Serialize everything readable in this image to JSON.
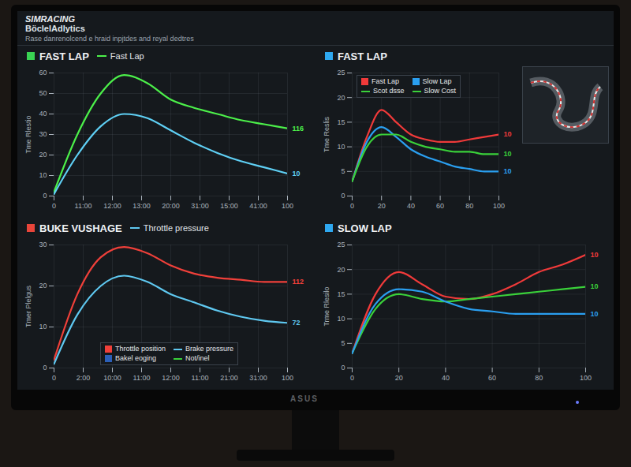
{
  "page": {
    "brand": "SIMRACING",
    "title": "BöclelAdlytics",
    "subtitle": "Rase danrenolcend e hraid inpjtdes and reyal dedtres",
    "bezel_label": "ASUS"
  },
  "chart_data": [
    {
      "type": "line",
      "title": "FAST LAP",
      "color": "#39d353",
      "x": [
        0,
        10,
        20,
        30,
        40,
        50,
        60,
        70,
        80,
        90,
        100
      ],
      "xlim": [
        0,
        100
      ],
      "xticks": [
        0,
        {
          "value": 12.5,
          "label": "11:00"
        },
        {
          "value": 25,
          "label": "12:00"
        },
        {
          "value": 37.5,
          "label": "13:00"
        },
        {
          "value": 50,
          "label": "20:00"
        },
        {
          "value": 62.5,
          "label": "31:00"
        },
        {
          "value": 75,
          "label": "15:00"
        },
        {
          "value": 87.5,
          "label": "41:00"
        },
        100
      ],
      "ylim": [
        0,
        60
      ],
      "yticks": [
        0,
        10,
        20,
        30,
        40,
        50,
        60
      ],
      "y_label": "Tme Rlestio",
      "grid": true,
      "legend": "top",
      "series": [
        {
          "name": "Fast Lap",
          "color": "#4cf04a",
          "values": [
            2,
            30,
            50,
            59,
            55,
            47,
            43,
            40,
            37,
            35,
            33
          ]
        },
        {
          "name": null,
          "color": "#5fd0f5",
          "values": [
            1,
            20,
            34,
            40,
            38,
            32,
            26,
            21,
            17,
            14,
            11
          ]
        }
      ],
      "end_labels": [
        "116",
        "10"
      ]
    },
    {
      "type": "line",
      "title": "FAST LAP",
      "color": "#2ea8f0",
      "x": [
        0,
        10,
        20,
        30,
        40,
        50,
        60,
        70,
        80,
        90,
        100
      ],
      "xlim": [
        0,
        100
      ],
      "xticks": [
        0,
        20,
        40,
        60,
        80,
        100
      ],
      "ylim": [
        0,
        25
      ],
      "yticks": [
        0,
        5,
        10,
        15,
        20,
        25
      ],
      "y_label": "Tme Reslis",
      "grid": true,
      "legend": "upper left",
      "series": [
        {
          "name": "Fast Lap",
          "color": "#f03a3a",
          "marker": "square",
          "values": [
            3,
            12,
            17.5,
            15,
            12.5,
            11.5,
            11,
            11,
            11.5,
            12,
            12.5
          ]
        },
        {
          "name": "Slow Lap",
          "color": "#2a9ff0",
          "marker": "square",
          "values": [
            3,
            11,
            14,
            12,
            9.5,
            8,
            7,
            6,
            5.5,
            5,
            5
          ]
        },
        {
          "name": "Scot dsse",
          "color": "#3ad13a",
          "values": [
            3,
            10,
            12.5,
            12.5,
            11,
            10,
            9.5,
            9,
            9,
            8.5,
            8.5
          ]
        },
        {
          "name": "Slow Cost",
          "color": "#3ad13a",
          "values": [
            null,
            null,
            null,
            null,
            null,
            null,
            null,
            null,
            null,
            null,
            null
          ]
        }
      ],
      "end_labels": [
        "10",
        "10",
        "10",
        null
      ]
    },
    {
      "type": "line",
      "title": "BUKE VUSHAGE",
      "subtitle": "Throttle pressure",
      "color": "#e8453a",
      "x": [
        0,
        10,
        20,
        30,
        40,
        50,
        60,
        70,
        80,
        90,
        100
      ],
      "xlim": [
        0,
        100
      ],
      "xticks": [
        0,
        {
          "value": 12.5,
          "label": "2:00"
        },
        {
          "value": 25,
          "label": "10:00"
        },
        {
          "value": 37.5,
          "label": "11:00"
        },
        {
          "value": 50,
          "label": "12:00"
        },
        {
          "value": 62.5,
          "label": "11:00"
        },
        {
          "value": 75,
          "label": "21:00"
        },
        {
          "value": 87.5,
          "label": "31:00"
        },
        100
      ],
      "ylim": [
        0,
        30
      ],
      "yticks": [
        0,
        10,
        20,
        30
      ],
      "y_label": "Tmer Plelgus",
      "grid": true,
      "legend": "lower left",
      "series": [
        {
          "name": "Throttle position",
          "color": "#f0403a",
          "marker": "square",
          "values": [
            2,
            18,
            27,
            29.5,
            28,
            25,
            23,
            22,
            21.5,
            21,
            21
          ]
        },
        {
          "name": "Brake pressure",
          "color": "#5fc8f0",
          "values": [
            1,
            13,
            20,
            22.5,
            21,
            18,
            16,
            14,
            12.5,
            11.5,
            11
          ]
        },
        {
          "name": "Bakel eoging",
          "color": "#2b5fb8",
          "marker": "square",
          "values": [
            null,
            null,
            null,
            null,
            null,
            null,
            null,
            null,
            null,
            null,
            null
          ]
        },
        {
          "name": "Not/inel",
          "color": "#3ad13a",
          "values": [
            null,
            null,
            null,
            null,
            null,
            null,
            null,
            null,
            null,
            null,
            null
          ]
        }
      ],
      "end_labels": [
        "112",
        "72",
        null,
        null
      ]
    },
    {
      "type": "line",
      "title": "SLOW LAP",
      "color": "#2ea8f0",
      "x": [
        0,
        10,
        20,
        30,
        40,
        50,
        60,
        70,
        80,
        90,
        100
      ],
      "xlim": [
        0,
        100
      ],
      "xticks": [
        0,
        20,
        40,
        60,
        80,
        100
      ],
      "ylim": [
        0,
        25
      ],
      "yticks": [
        0,
        5,
        10,
        15,
        20,
        25
      ],
      "y_label": "Trme Rlesilo",
      "grid": true,
      "series": [
        {
          "name": null,
          "color": "#f03a3a",
          "values": [
            3,
            15,
            19.5,
            17,
            14.5,
            14,
            15,
            17,
            19.5,
            21,
            23
          ]
        },
        {
          "name": null,
          "color": "#3ad13a",
          "values": [
            3,
            12,
            15,
            14,
            13.5,
            14,
            14.5,
            15,
            15.5,
            16,
            16.5
          ]
        },
        {
          "name": null,
          "color": "#2a9ff0",
          "values": [
            3,
            13,
            16,
            15.5,
            13.5,
            12,
            11.5,
            11,
            11,
            11,
            11
          ]
        }
      ],
      "end_labels": [
        "10",
        "10",
        "10"
      ]
    }
  ]
}
